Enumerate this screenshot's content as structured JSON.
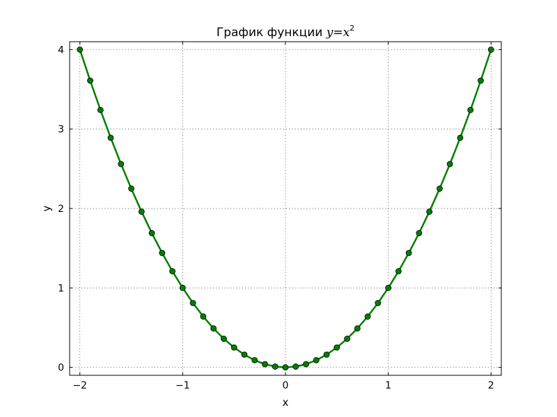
{
  "chart_data": {
    "type": "line",
    "title": {
      "prefix": "График функции ",
      "math_lhs": "y",
      "math_eq": "=",
      "math_base": "x",
      "math_exp": "2"
    },
    "xlabel": "x",
    "ylabel": "y",
    "xlim": [
      -2.1,
      2.1
    ],
    "ylim": [
      -0.1,
      4.1
    ],
    "xticks": [
      {
        "value": -2,
        "label": "−2"
      },
      {
        "value": -1,
        "label": "−1"
      },
      {
        "value": 0,
        "label": "0"
      },
      {
        "value": 1,
        "label": "1"
      },
      {
        "value": 2,
        "label": "2"
      }
    ],
    "yticks": [
      {
        "value": 0,
        "label": "0"
      },
      {
        "value": 1,
        "label": "1"
      },
      {
        "value": 2,
        "label": "2"
      },
      {
        "value": 3,
        "label": "3"
      },
      {
        "value": 4,
        "label": "4"
      }
    ],
    "grid": true,
    "series": [
      {
        "color": "#007f00",
        "marker": "circle",
        "x": [
          -2.0,
          -1.9,
          -1.8,
          -1.7,
          -1.6,
          -1.5,
          -1.4,
          -1.3,
          -1.2,
          -1.1,
          -1.0,
          -0.9,
          -0.8,
          -0.7,
          -0.6,
          -0.5,
          -0.4,
          -0.3,
          -0.2,
          -0.1,
          0.0,
          0.1,
          0.2,
          0.3,
          0.4,
          0.5,
          0.6,
          0.7,
          0.8,
          0.9,
          1.0,
          1.1,
          1.2,
          1.3,
          1.4,
          1.5,
          1.6,
          1.7,
          1.8,
          1.9,
          2.0
        ],
        "y": [
          4.0,
          3.61,
          3.24,
          2.89,
          2.56,
          2.25,
          1.96,
          1.69,
          1.44,
          1.21,
          1.0,
          0.81,
          0.64,
          0.49,
          0.36,
          0.25,
          0.16,
          0.09,
          0.04,
          0.01,
          0.0,
          0.01,
          0.04,
          0.09,
          0.16,
          0.25,
          0.36,
          0.49,
          0.64,
          0.81,
          1.0,
          1.21,
          1.44,
          1.69,
          1.96,
          2.25,
          2.56,
          2.89,
          3.24,
          3.61,
          4.0
        ]
      }
    ]
  }
}
